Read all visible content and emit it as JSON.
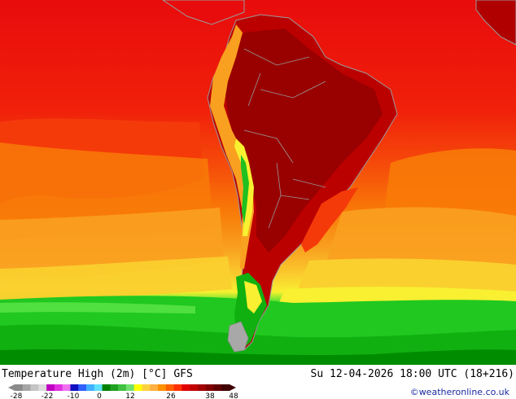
{
  "map": {
    "regions": [
      "South America",
      "Pacific Ocean",
      "Atlantic Ocean"
    ]
  },
  "footer": {
    "title": "Temperature High (2m) [°C] GFS",
    "datetime": "Su 12-04-2026 18:00 UTC (18+216)",
    "credit": "©weatheronline.co.uk"
  },
  "legend": {
    "tick_labels": [
      "-28",
      "-22",
      "-10",
      "0",
      "12",
      "26",
      "38",
      "48"
    ],
    "colors": [
      "#8a8a8a",
      "#a6a6a6",
      "#c4c4c4",
      "#dcdcdc",
      "#c000c0",
      "#e030e0",
      "#f070f0",
      "#1010c0",
      "#3060ff",
      "#40b0ff",
      "#60e0ff",
      "#008000",
      "#20a020",
      "#40c040",
      "#70e070",
      "#ffff00",
      "#ffd040",
      "#ffb040",
      "#ff9000",
      "#ff6000",
      "#ff3000",
      "#e00000",
      "#c00000",
      "#a00000",
      "#800000",
      "#600000",
      "#400000"
    ]
  },
  "colors": {
    "deep_red": "#990000",
    "dark_red": "#bb0000",
    "red": "#e80c0c",
    "red_orange": "#f53a0a",
    "orange": "#f87a08",
    "light_orange": "#f9a020",
    "yellow_orange": "#fac82a",
    "yellow": "#f8f030",
    "light_green": "#40e030",
    "green": "#10c010",
    "dark_green": "#008000",
    "gray": "#a0a0a0"
  }
}
